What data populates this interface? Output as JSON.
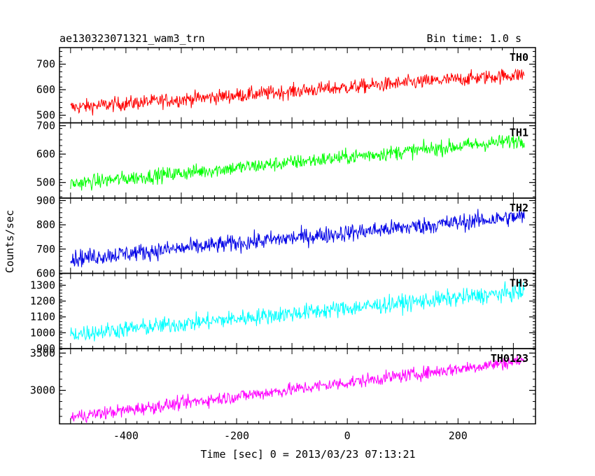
{
  "chart_data": {
    "type": "line",
    "title_left": "ae130323071321_wam3_trn",
    "title_right": "Bin time: 1.0 s",
    "xlabel": "Time [sec] 0 = 2013/03/23 07:13:21",
    "ylabel": "Counts/sec",
    "xlim": [
      -520,
      340
    ],
    "x_ticks": [
      -400,
      -200,
      0,
      200
    ],
    "x_range_data": [
      -500,
      320
    ],
    "grid": false,
    "panels": [
      {
        "name": "TH0",
        "color": "#ff0000",
        "ylim": [
          470,
          765
        ],
        "y_ticks": [
          500,
          600,
          700
        ],
        "trend_start": 530,
        "trend_end": 660,
        "noise": 24
      },
      {
        "name": "TH1",
        "color": "#00ff00",
        "ylim": [
          445,
          710
        ],
        "y_ticks": [
          500,
          600,
          700
        ],
        "trend_start": 495,
        "trend_end": 650,
        "noise": 22
      },
      {
        "name": "TH2",
        "color": "#0000e6",
        "ylim": [
          600,
          910
        ],
        "y_ticks": [
          600,
          700,
          800,
          900
        ],
        "trend_start": 660,
        "trend_end": 835,
        "noise": 30
      },
      {
        "name": "TH3",
        "color": "#00ffff",
        "ylim": [
          900,
          1375
        ],
        "y_ticks": [
          900,
          1000,
          1100,
          1200,
          1300
        ],
        "trend_start": 990,
        "trend_end": 1260,
        "noise": 45
      },
      {
        "name": "TH0123",
        "color": "#ff00ff",
        "ylim": [
          2550,
          3560
        ],
        "y_ticks": [
          3000,
          3500
        ],
        "trend_start": 2640,
        "trend_end": 3400,
        "noise": 75
      }
    ]
  }
}
